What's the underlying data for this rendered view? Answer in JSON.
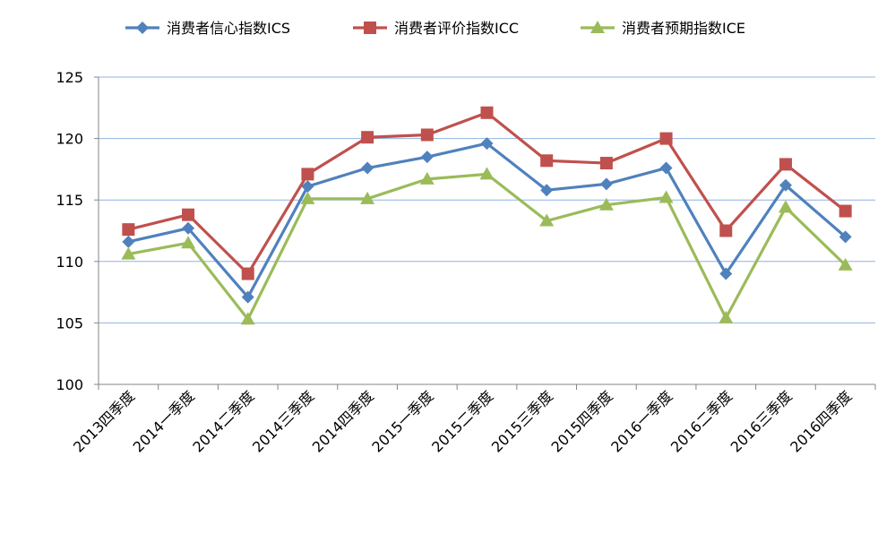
{
  "chart_data": {
    "type": "line",
    "title": "",
    "xlabel": "",
    "ylabel": "",
    "ylim": [
      100,
      125
    ],
    "yticks": [
      100,
      105,
      110,
      115,
      120,
      125
    ],
    "grid": true,
    "legend": "top",
    "categories": [
      "2013四季度",
      "2014一季度",
      "2014二季度",
      "2014三季度",
      "2014四季度",
      "2015一季度",
      "2015二季度",
      "2015三季度",
      "2015四季度",
      "2016一季度",
      "2016二季度",
      "2016三季度",
      "2016四季度"
    ],
    "series": [
      {
        "name": "消费者信心指数ICS",
        "color": "#4F81BD",
        "marker": "diamond",
        "values": [
          111.6,
          112.7,
          107.1,
          116.1,
          117.6,
          118.5,
          119.6,
          115.8,
          116.3,
          117.6,
          109.0,
          116.2,
          112.0
        ]
      },
      {
        "name": "消费者评价指数ICC",
        "color": "#C0504D",
        "marker": "square",
        "values": [
          112.6,
          113.8,
          109.0,
          117.1,
          120.1,
          120.3,
          122.1,
          118.2,
          118.0,
          120.0,
          112.5,
          117.9,
          114.1
        ]
      },
      {
        "name": "消费者预期指数ICE",
        "color": "#9BBB59",
        "marker": "triangle",
        "values": [
          110.6,
          111.5,
          105.3,
          115.1,
          115.1,
          116.7,
          117.1,
          113.3,
          114.6,
          115.2,
          105.4,
          114.4,
          109.7
        ]
      }
    ]
  }
}
